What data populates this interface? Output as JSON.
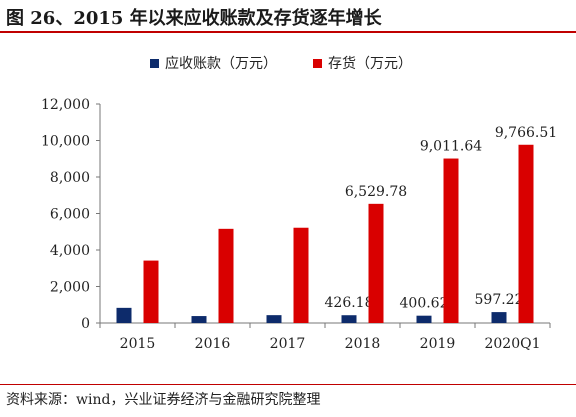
{
  "title": "图 26、2015 年以来应收账款及存货逐年增长",
  "source": "资料来源：wind，兴业证券经济与金融研究院整理",
  "colors": {
    "receivables": "#0d2b6b",
    "inventory": "#d90000",
    "accent_rule": "#c00000"
  },
  "chart_data": {
    "type": "bar",
    "categories": [
      "2015",
      "2016",
      "2017",
      "2018",
      "2019",
      "2020Q1"
    ],
    "series": [
      {
        "name": "应收账款（万元）",
        "values": [
          830,
          380,
          430,
          426.18,
          400.62,
          597.22
        ],
        "labels": [
          "",
          "",
          "",
          "426.18",
          "400.62",
          "597.22"
        ]
      },
      {
        "name": "存货（万元）",
        "values": [
          3420,
          5160,
          5220,
          6529.78,
          9011.64,
          9766.51
        ],
        "labels": [
          "",
          "",
          "",
          "6,529.78",
          "9,011.64",
          "9,766.51"
        ]
      }
    ],
    "yticks": [
      "0",
      "2,000",
      "4,000",
      "6,000",
      "8,000",
      "10,000",
      "12,000"
    ],
    "ylim": [
      0,
      12000
    ],
    "legend": "top-center",
    "grid": false
  }
}
